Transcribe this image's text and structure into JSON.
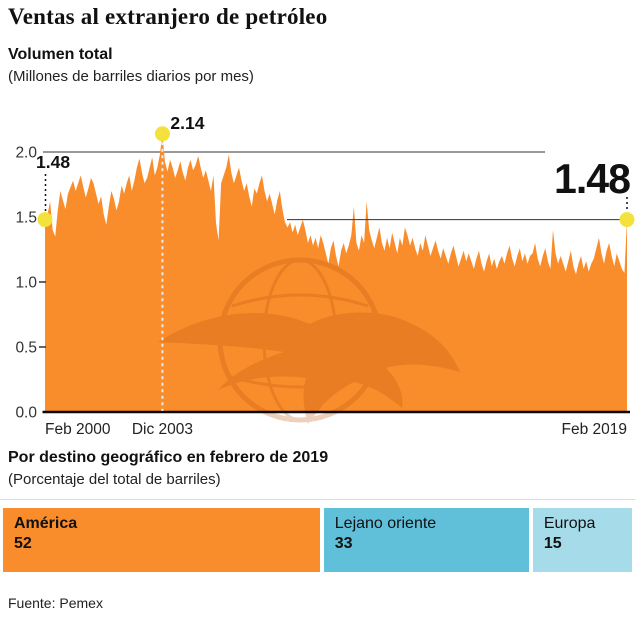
{
  "header": {
    "title": "Ventas al extranjero de petróleo",
    "subtitle": "Volumen total",
    "note": "(Millones de barriles diarios por mes)"
  },
  "section2": {
    "title": "Por destino geográfico en febrero de 2019",
    "note": "(Porcentaje del total de barriles)"
  },
  "footer": {
    "source": "Fuente: Pemex"
  },
  "chart_data": [
    {
      "type": "area",
      "title": "Volumen total",
      "ylabel": "Millones de barriles diarios por mes",
      "ylim": [
        0,
        2.2
      ],
      "y_ticks": [
        2.0,
        1.5,
        1.0,
        0.5,
        0.0
      ],
      "y_tick_labels": [
        "2.0",
        "1.5",
        "1.0",
        "0.5",
        "0.0"
      ],
      "x_monthly_from": "Feb 2000",
      "x_monthly_to": "Feb 2019",
      "x_tick_labels": [
        "Feb 2000",
        "Dic 2003",
        "Feb 2019"
      ],
      "x_tick_indices": [
        0,
        46,
        228
      ],
      "grid": "only 2.0 line",
      "series_color": "#F98C2B",
      "marker_color": "#F3E13C",
      "watermark_icon": "globe-eagle",
      "watermark_color": "#C05A10",
      "annotations": [
        {
          "label": "1.48",
          "x_index": 0,
          "value": 1.48,
          "style": "small"
        },
        {
          "label": "2.14",
          "x_index": 46,
          "value": 2.14,
          "style": "small"
        },
        {
          "label": "1.48",
          "x_index": 228,
          "value": 1.48,
          "style": "large"
        }
      ],
      "ref_lines": [
        {
          "value": 2.0,
          "extent": "left"
        },
        {
          "value": 1.48,
          "extent": "right"
        }
      ],
      "values": [
        1.48,
        1.52,
        1.62,
        1.4,
        1.35,
        1.55,
        1.7,
        1.63,
        1.56,
        1.68,
        1.73,
        1.78,
        1.7,
        1.76,
        1.82,
        1.73,
        1.65,
        1.72,
        1.8,
        1.76,
        1.68,
        1.6,
        1.66,
        1.52,
        1.44,
        1.58,
        1.7,
        1.64,
        1.55,
        1.62,
        1.74,
        1.68,
        1.76,
        1.82,
        1.7,
        1.78,
        1.88,
        1.95,
        1.84,
        1.76,
        1.8,
        1.88,
        1.96,
        1.82,
        1.88,
        1.98,
        2.14,
        1.92,
        1.85,
        1.94,
        1.88,
        1.8,
        1.86,
        1.93,
        1.84,
        1.78,
        1.88,
        1.94,
        1.86,
        1.9,
        1.97,
        1.88,
        1.8,
        1.86,
        1.78,
        1.7,
        1.82,
        1.45,
        1.32,
        1.76,
        1.82,
        1.88,
        1.98,
        1.84,
        1.76,
        1.82,
        1.88,
        1.78,
        1.7,
        1.76,
        1.66,
        1.58,
        1.72,
        1.68,
        1.76,
        1.82,
        1.7,
        1.62,
        1.68,
        1.6,
        1.52,
        1.63,
        1.7,
        1.56,
        1.46,
        1.42,
        1.46,
        1.38,
        1.44,
        1.36,
        1.42,
        1.48,
        1.4,
        1.3,
        1.36,
        1.28,
        1.34,
        1.26,
        1.36,
        1.3,
        1.22,
        1.14,
        1.26,
        1.32,
        1.2,
        1.12,
        1.24,
        1.3,
        1.22,
        1.28,
        1.36,
        1.58,
        1.3,
        1.24,
        1.36,
        1.3,
        1.62,
        1.4,
        1.32,
        1.26,
        1.34,
        1.42,
        1.3,
        1.24,
        1.34,
        1.26,
        1.38,
        1.3,
        1.22,
        1.34,
        1.28,
        1.42,
        1.36,
        1.28,
        1.34,
        1.26,
        1.2,
        1.3,
        1.24,
        1.36,
        1.28,
        1.2,
        1.26,
        1.32,
        1.24,
        1.18,
        1.26,
        1.2,
        1.14,
        1.22,
        1.28,
        1.2,
        1.12,
        1.18,
        1.24,
        1.16,
        1.22,
        1.16,
        1.1,
        1.18,
        1.24,
        1.14,
        1.08,
        1.16,
        1.22,
        1.12,
        1.18,
        1.1,
        1.16,
        1.2,
        1.14,
        1.22,
        1.28,
        1.18,
        1.12,
        1.2,
        1.26,
        1.16,
        1.22,
        1.14,
        1.2,
        1.22,
        1.3,
        1.18,
        1.12,
        1.2,
        1.26,
        1.16,
        1.1,
        1.4,
        1.22,
        1.14,
        1.2,
        1.14,
        1.08,
        1.16,
        1.24,
        1.12,
        1.06,
        1.14,
        1.2,
        1.1,
        1.16,
        1.08,
        1.14,
        1.18,
        1.26,
        1.34,
        1.22,
        1.14,
        1.24,
        1.3,
        1.2,
        1.12,
        1.22,
        1.16,
        1.1,
        1.07,
        1.48
      ]
    },
    {
      "type": "bar",
      "title": "Por destino geográfico en febrero de 2019",
      "note": "Porcentaje del total de barriles",
      "categories": [
        "América",
        "Lejano oriente",
        "Europa"
      ],
      "values": [
        52,
        33,
        15
      ],
      "colors": [
        "#F98C2B",
        "#60BFD9",
        "#A6DBE9"
      ],
      "slugs": [
        "america",
        "lejano-oriente",
        "europa"
      ]
    }
  ]
}
